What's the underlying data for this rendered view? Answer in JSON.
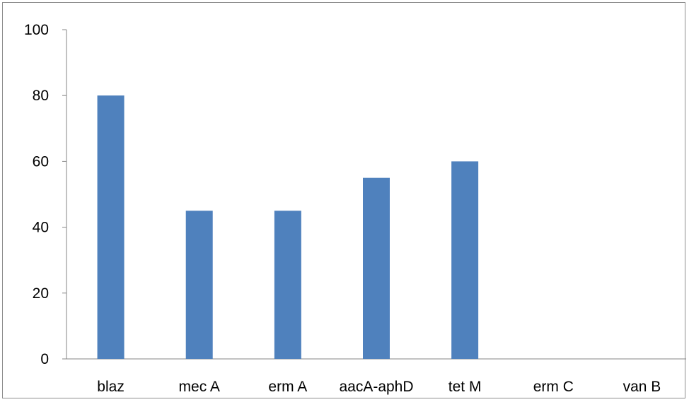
{
  "chart_data": {
    "type": "bar",
    "title": "",
    "xlabel": "",
    "ylabel": "",
    "categories": [
      "blaz",
      "mec A",
      "erm A",
      "aacA-aphD",
      "tet M",
      "erm C",
      "van B"
    ],
    "values": [
      80,
      45,
      45,
      55,
      60,
      0,
      0
    ],
    "ylim": [
      0,
      100
    ],
    "yticks": [
      "0",
      "20",
      "40",
      "60",
      "80",
      "100"
    ],
    "grid": false,
    "legend": "none",
    "bar_color": "#4F81BD",
    "axis_color": "#868686"
  }
}
